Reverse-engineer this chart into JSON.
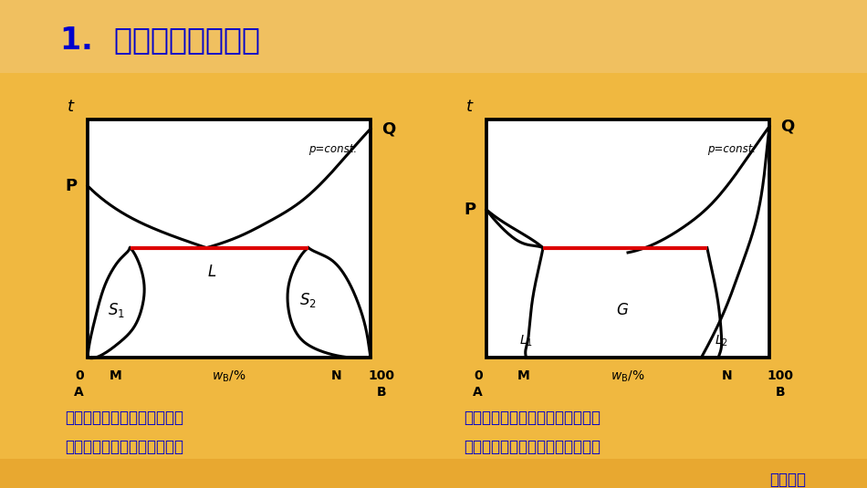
{
  "title": "1.  系统有一低共熔点",
  "title_color": "#0000cc",
  "title_fontsize": 24,
  "bg_top_color": "#f8d090",
  "bg_bottom_color": "#e89030",
  "diagram_bg": "#ffffff",
  "footer": "物理化学",
  "footer_color": "#0000cc",
  "line_color": "#000000",
  "red_line_color": "#dd0000",
  "line_width": 2.2,
  "caption1_line1": "系统具有一低共熔点的二组分",
  "caption1_line2": "固态部分互溶系统的液固平衡",
  "caption2_line1": "气相组成介于两液相组成之间的二",
  "caption2_line2": "组分液态部分互溶系统的液气平衡"
}
